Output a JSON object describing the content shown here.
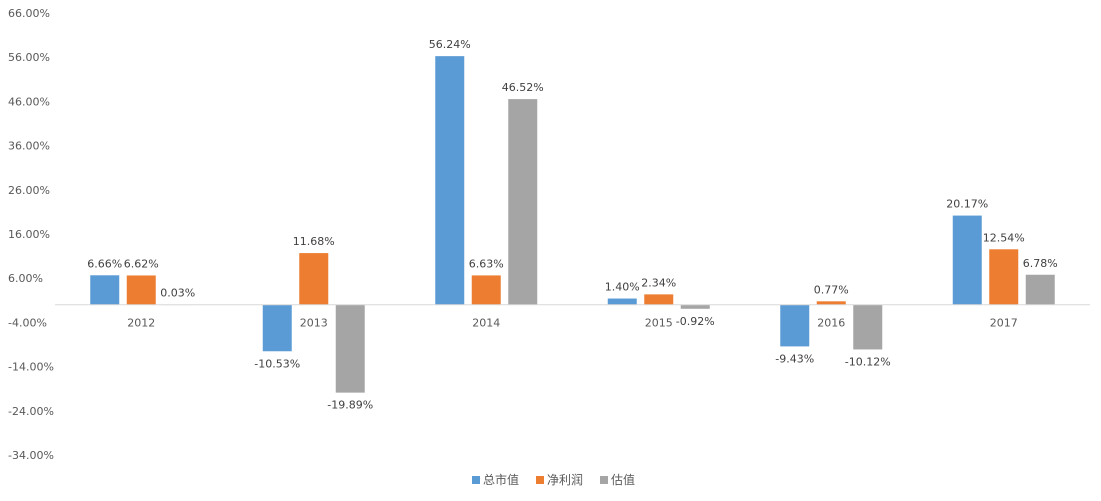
{
  "chart_data": {
    "type": "bar",
    "categories": [
      "2012",
      "2013",
      "2014",
      "2015",
      "2016",
      "2017"
    ],
    "series": [
      {
        "name": "总市值",
        "color": "#5b9bd5",
        "values": [
          6.66,
          -10.53,
          56.24,
          1.4,
          -9.43,
          20.17
        ],
        "labels": [
          "6.66%",
          "-10.53%",
          "56.24%",
          "1.40%",
          "-9.43%",
          "20.17%"
        ]
      },
      {
        "name": "净利润",
        "color": "#ed7d31",
        "values": [
          6.62,
          11.68,
          6.63,
          2.34,
          0.77,
          12.54
        ],
        "labels": [
          "6.62%",
          "11.68%",
          "6.63%",
          "2.34%",
          "0.77%",
          "12.54%"
        ]
      },
      {
        "name": "估值",
        "color": "#a5a5a5",
        "values": [
          0.03,
          -19.89,
          46.52,
          -0.92,
          -10.12,
          6.78
        ],
        "labels": [
          "0.03%",
          "-19.89%",
          "46.52%",
          "-0.92%",
          "-10.12%",
          "6.78%"
        ]
      }
    ],
    "y_ticks": [
      66,
      56,
      46,
      36,
      26,
      16,
      6,
      -4,
      -14,
      -24,
      -34
    ],
    "y_tick_labels": [
      "66.00%",
      "56.00%",
      "46.00%",
      "36.00%",
      "26.00%",
      "16.00%",
      "6.00%",
      "-4.00%",
      "-14.00%",
      "-24.00%",
      "-34.00%"
    ],
    "ylim": [
      -34,
      66
    ],
    "grid": false,
    "legend_position": "bottom"
  }
}
